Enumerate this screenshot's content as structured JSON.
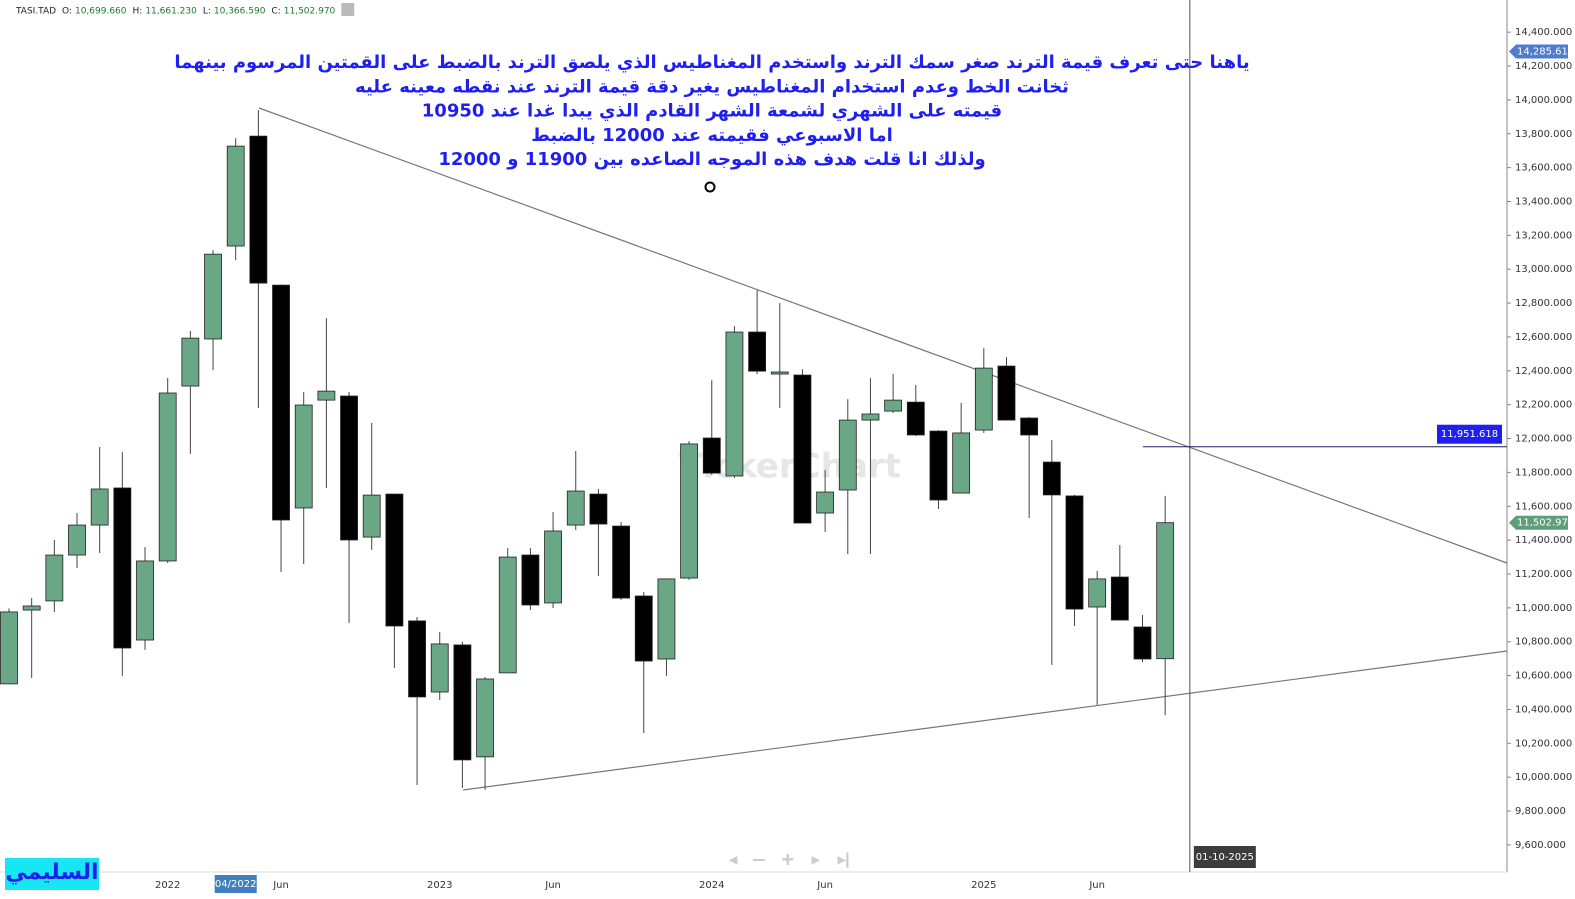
{
  "chart_data": {
    "type": "candlestick",
    "header": {
      "symbol": "TASI.TAD",
      "fields": [
        {
          "name": "O:",
          "value": "10,699.660"
        },
        {
          "name": "H:",
          "value": "11,661.230"
        },
        {
          "name": "L:",
          "value": "10,366.590"
        },
        {
          "name": "C:",
          "value": "11,502.970"
        }
      ]
    },
    "annotations": [
      "ياهنا حتى تعرف قيمة الترند صغر سمك الترند واستخدم المغناطيس الذي يلصق الترند بالضبط على القمتين المرسوم بينهما",
      "ثخانت الخط وعدم استخدام المغناطيس يغير دقة قيمة الترند عند نقطه معينه عليه",
      "قيمته على الشهري لشمعة الشهر القادم الذي يبدا غدا عند 10950",
      "اما الاسبوعي فقيمته عند 12000 بالضبط",
      "ولذلك انا قلت هدف هذه الموجه الصاعده بين 11900 و 12000"
    ],
    "watermark": "TickerChart",
    "author": "السليمي",
    "crosshair_label": "04/2022",
    "cursor_label": "01-10-2025",
    "up_color": "#6aa784",
    "down_color": "#000000",
    "grid": false,
    "categories": [
      null,
      null,
      null,
      null,
      null,
      null,
      null,
      "2022",
      null,
      null,
      null,
      null,
      "Jun",
      null,
      null,
      null,
      null,
      null,
      null,
      "2023",
      null,
      null,
      null,
      null,
      "Jun",
      null,
      null,
      null,
      null,
      null,
      null,
      "2024",
      null,
      null,
      null,
      null,
      "Jun",
      null,
      null,
      null,
      null,
      null,
      null,
      "2025",
      null,
      null,
      null,
      null,
      "Jun",
      null,
      null,
      null
    ],
    "open": [
      10551,
      10987,
      11041,
      11312,
      11489,
      11708,
      10810,
      11277,
      12310,
      12588,
      13137,
      13786,
      12906,
      11590,
      12227,
      12251,
      11418,
      11672,
      10923,
      10503,
      10781,
      10120,
      10616,
      11312,
      11029,
      11489,
      11672,
      11483,
      11070,
      10698,
      11176,
      12003,
      11779,
      12629,
      12381,
      12375,
      11560,
      11696,
      12109,
      12162,
      12215,
      12044,
      11678,
      12050,
      12428,
      12121,
      11861,
      11661,
      11005,
      11182,
      10887,
      10699.66
    ],
    "high": [
      10997,
      11058,
      11401,
      11560,
      11950,
      11920,
      11359,
      12357,
      12635,
      13113,
      13774,
      13940,
      12910,
      12275,
      12711,
      12275,
      12092,
      11672,
      10946,
      10858,
      10799,
      10592,
      11353,
      11353,
      11566,
      11926,
      11702,
      11507,
      11094,
      11171,
      11985,
      12345,
      12664,
      12877,
      12800,
      12410,
      11814,
      12233,
      12357,
      12381,
      12316,
      12050,
      12210,
      12534,
      12481,
      12127,
      11991,
      11667,
      11218,
      11371,
      10958,
      11661.23
    ],
    "low": [
      10550,
      10586,
      10976,
      11235,
      11324,
      10598,
      10751,
      11265,
      11909,
      12404,
      13054,
      12180,
      11212,
      11259,
      11708,
      10911,
      11342,
      10645,
      9954,
      10456,
      9937,
      9925,
      10616,
      10987,
      10999,
      11460,
      11188,
      11047,
      10261,
      10598,
      11165,
      11785,
      11767,
      12381,
      12180,
      11501,
      11448,
      11318,
      11318,
      12150,
      12015,
      11584,
      11678,
      12033,
      12109,
      11531,
      10663,
      10893,
      10427,
      10928,
      10680,
      10366.59
    ],
    "close": [
      10976,
      11011,
      11312,
      11489,
      11702,
      10763,
      11277,
      12269,
      12593,
      13089,
      13727,
      12918,
      11519,
      12198,
      12280,
      11401,
      11666,
      10893,
      10474,
      10787,
      10102,
      10580,
      11300,
      11017,
      11454,
      11690,
      11495,
      11058,
      10686,
      11171,
      11968,
      11796,
      12629,
      12398,
      12393,
      11501,
      11684,
      12109,
      12145,
      12227,
      12021,
      11637,
      12033,
      12416,
      12109,
      12021,
      11667,
      10993,
      11171,
      10928,
      10698,
      11502.97
    ],
    "price_markers": [
      {
        "value": 14285.619,
        "label": "14,285.619",
        "color": "#4f7ccc",
        "position": "axis"
      },
      {
        "value": 11951.618,
        "label": "11,951.618",
        "color": "#1f1ff0",
        "position": "inside"
      },
      {
        "value": 11502.97,
        "label": "11,502.970",
        "color": "#5e9e78",
        "position": "axis"
      }
    ],
    "ylim": [
      9440,
      14590
    ],
    "yticks": [
      {
        "value": 9600,
        "label": "9,600.000"
      },
      {
        "value": 9800,
        "label": "9,800.000"
      },
      {
        "value": 10000,
        "label": "10,000.000"
      },
      {
        "value": 10200,
        "label": "10,200.000"
      },
      {
        "value": 10400,
        "label": "10,400.000"
      },
      {
        "value": 10600,
        "label": "10,600.000"
      },
      {
        "value": 10800,
        "label": "10,800.000"
      },
      {
        "value": 11000,
        "label": "11,000.000"
      },
      {
        "value": 11200,
        "label": "11,200.000"
      },
      {
        "value": 11400,
        "label": "11,400.000"
      },
      {
        "value": 11600,
        "label": "11,600.000"
      },
      {
        "value": 11800,
        "label": "11,800.000"
      },
      {
        "value": 12000,
        "label": "12,000.000"
      },
      {
        "value": 12200,
        "label": "12,200.000"
      },
      {
        "value": 12400,
        "label": "12,400.000"
      },
      {
        "value": 12600,
        "label": "12,600.000"
      },
      {
        "value": 12800,
        "label": "12,800.000"
      },
      {
        "value": 13000,
        "label": "13,000.000"
      },
      {
        "value": 13200,
        "label": "13,200.000"
      },
      {
        "value": 13400,
        "label": "13,400.000"
      },
      {
        "value": 13600,
        "label": "13,600.000"
      },
      {
        "value": 13800,
        "label": "13,800.000"
      },
      {
        "value": 14000,
        "label": "14,000.000"
      },
      {
        "value": 14200,
        "label": "14,200.000"
      },
      {
        "value": 14400,
        "label": "14,400.000"
      }
    ]
  }
}
